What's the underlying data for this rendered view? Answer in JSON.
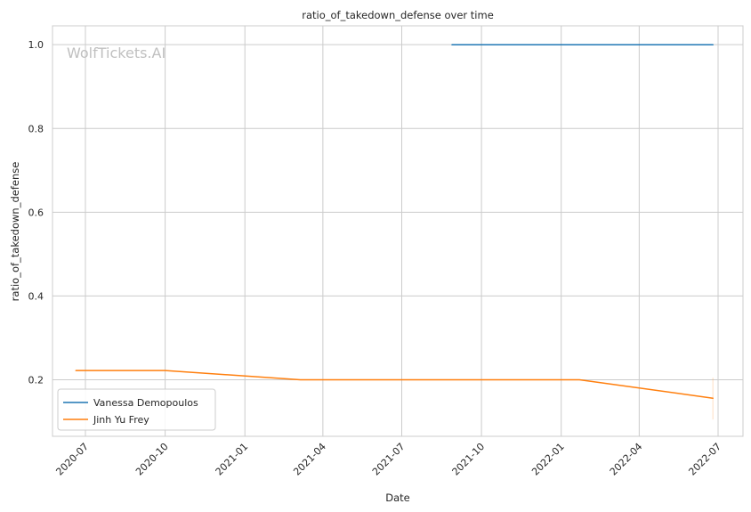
{
  "chart_data": {
    "type": "line",
    "title": "ratio_of_takedown_defense over time",
    "xlabel": "Date",
    "ylabel": "ratio_of_takedown_defense",
    "watermark": "WolfTickets.AI",
    "x_ticks": [
      "2020-07",
      "2020-10",
      "2021-01",
      "2021-04",
      "2021-07",
      "2021-10",
      "2022-01",
      "2022-04",
      "2022-07"
    ],
    "y_ticks": [
      "0.2",
      "0.4",
      "0.6",
      "0.8",
      "1.0"
    ],
    "ylim": [
      0.065,
      1.045
    ],
    "grid": true,
    "legend_position": "lower-left",
    "series": [
      {
        "name": "Vanessa Demopoulos",
        "color": "#1f77b4",
        "points": [
          {
            "x": "2021-08-28",
            "y": 1.0
          },
          {
            "x": "2022-06-25",
            "y": 1.0
          }
        ]
      },
      {
        "name": "Jinh Yu Frey",
        "color": "#ff7f0e",
        "points": [
          {
            "x": "2020-06-20",
            "y": 0.222
          },
          {
            "x": "2020-10-01",
            "y": 0.222
          },
          {
            "x": "2021-03-06",
            "y": 0.2
          },
          {
            "x": "2022-01-22",
            "y": 0.2
          },
          {
            "x": "2022-06-25",
            "y": 0.156
          }
        ]
      }
    ]
  }
}
